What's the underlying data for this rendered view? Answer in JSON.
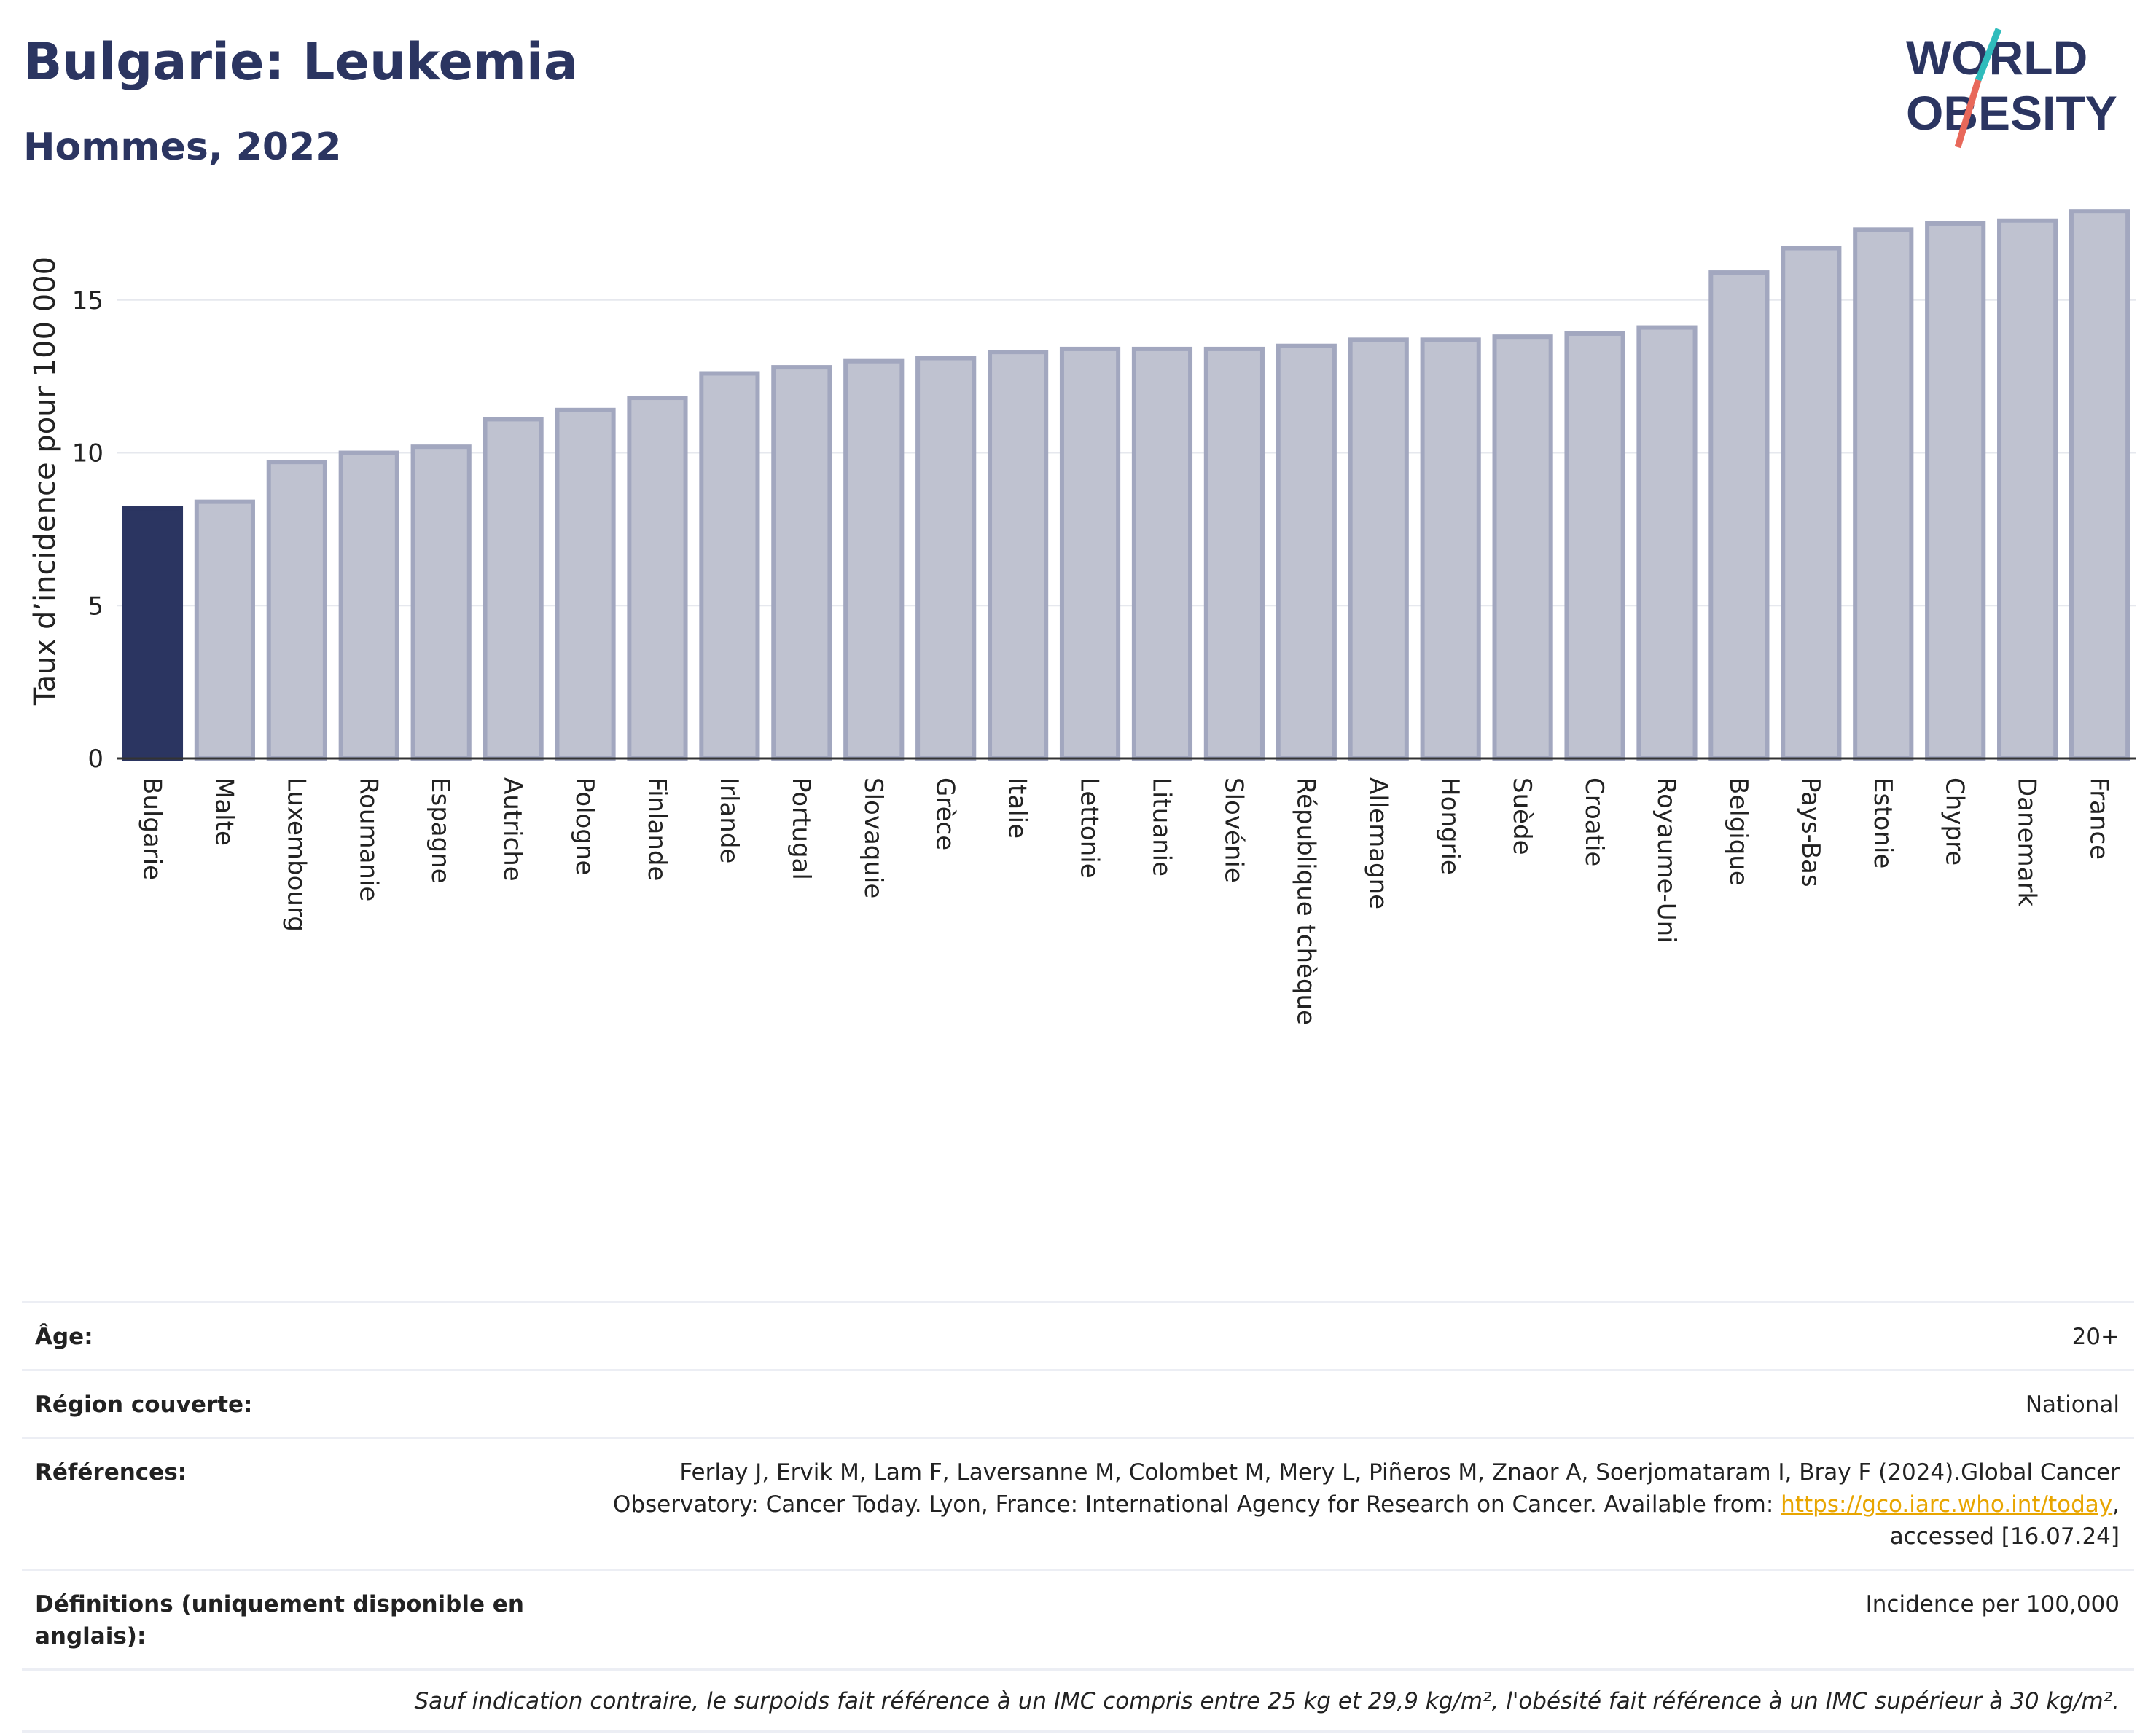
{
  "header": {
    "title": "Bulgarie: Leukemia",
    "subtitle": "Hommes, 2022",
    "logo_line1": "WORLD",
    "logo_line2": "OBESITY"
  },
  "colors": {
    "highlight_bar": "#2b3561",
    "other_bar_fill": "#bfc2d0",
    "other_bar_stroke": "#a2a7bf",
    "title": "#2b3561",
    "logo_teal": "#2fbcbc",
    "logo_coral": "#e8685a"
  },
  "chart_data": {
    "type": "bar",
    "ylabel": "Taux d’incidence pour 100 000",
    "ylim": [
      0,
      18.5
    ],
    "yticks": [
      0,
      5,
      10,
      15
    ],
    "grid": true,
    "highlight": "Bulgarie",
    "categories": [
      "Bulgarie",
      "Malte",
      "Luxembourg",
      "Roumanie",
      "Espagne",
      "Autriche",
      "Pologne",
      "Finlande",
      "Irlande",
      "Portugal",
      "Slovaquie",
      "Grèce",
      "Italie",
      "Lettonie",
      "Lituanie",
      "Slovénie",
      "République tchèque",
      "Allemagne",
      "Hongrie",
      "Suède",
      "Croatie",
      "Royaume-Uni",
      "Belgique",
      "Pays-Bas",
      "Estonie",
      "Chypre",
      "Danemark",
      "France"
    ],
    "values": [
      8.2,
      8.4,
      9.7,
      10.0,
      10.2,
      11.1,
      11.4,
      11.8,
      12.6,
      12.8,
      13.0,
      13.1,
      13.3,
      13.4,
      13.4,
      13.4,
      13.5,
      13.7,
      13.7,
      13.8,
      13.9,
      14.1,
      15.9,
      16.7,
      17.3,
      17.5,
      17.6,
      17.9
    ]
  },
  "footer": {
    "age_label": "Âge:",
    "age_value": "20+",
    "region_label": "Région couverte:",
    "region_value": "National",
    "refs_label": "Références:",
    "refs_text_1": "Ferlay J, Ervik M, Lam F, Laversanne M, Colombet M, Mery L, Piñeros M, Znaor A, Soerjomataram I, Bray F (2024).Global Cancer Observatory: Cancer Today. Lyon, France: International Agency for Research on Cancer. Available from: ",
    "refs_link": "https://gco.iarc.who.int/today",
    "refs_text_2": ", accessed [16.07.24]",
    "defs_label": "Définitions (uniquement disponible en anglais):",
    "defs_value": "Incidence per 100,000",
    "note": "Sauf indication contraire, le surpoids fait référence à un IMC compris entre 25 kg et 29,9 kg/m², l'obésité fait référence à un IMC supérieur à 30 kg/m²."
  }
}
